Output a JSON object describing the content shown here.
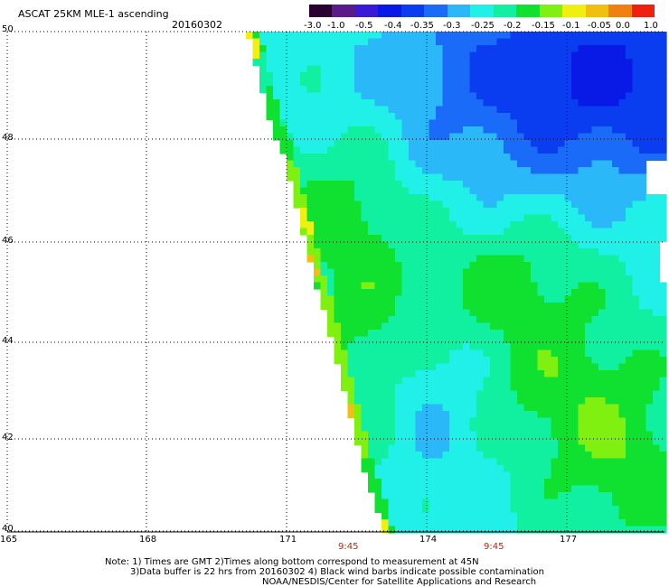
{
  "title": "ASCAT 25KM MLE-1 ascending",
  "date": "20160302",
  "colorbar": {
    "tick_labels": [
      "-3.0",
      "-1.0",
      "-0.5",
      "-0.4",
      "-0.35",
      "-0.3",
      "-0.25",
      "-0.2",
      "-0.15",
      "-0.1",
      "-0.05",
      "0.0",
      "1.0"
    ],
    "colors": [
      "#2a0033",
      "#5a1a8c",
      "#3a1ad6",
      "#0a1ae6",
      "#0a3cf0",
      "#1a6cf8",
      "#2ab8f8",
      "#20f0e8",
      "#10f0a0",
      "#10e030",
      "#80f010",
      "#f0f010",
      "#f0c010",
      "#f08010",
      "#f02010"
    ]
  },
  "lat_labels": [
    "50",
    "48",
    "46",
    "44",
    "42",
    "40"
  ],
  "lon_labels": [
    "165",
    "168",
    "171",
    "174",
    "177"
  ],
  "time_labels": [
    "9:45",
    "9:45"
  ],
  "notes": [
    "Note: 1) Times are GMT 2)Times along bottom correspond to measurement at 45N",
    "3)Data buffer is 22 hrs from 20160302 4) Black wind barbs indicate possible contamination",
    "NOAA/NESDIS/Center for Satellite Applications and Research"
  ]
}
